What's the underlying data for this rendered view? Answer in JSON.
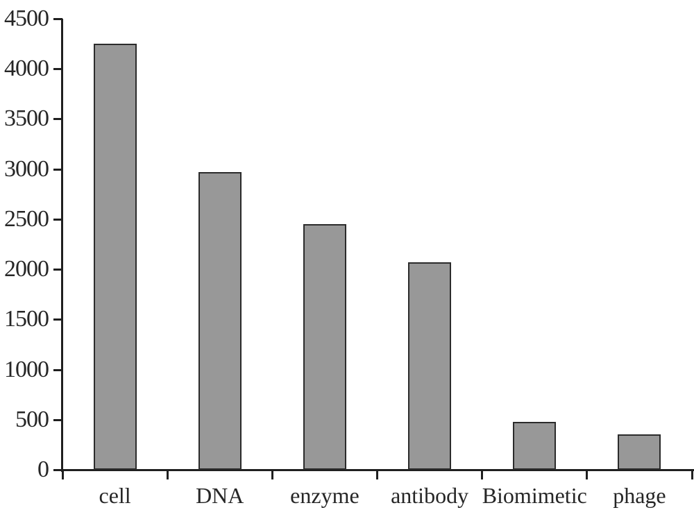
{
  "chart_data": {
    "type": "bar",
    "title": "",
    "xlabel": "",
    "ylabel": "",
    "categories": [
      "cell",
      "DNA",
      "enzyme",
      "antibody",
      "Biomimetic",
      "phage"
    ],
    "values": [
      4250,
      2970,
      2450,
      2070,
      480,
      355
    ],
    "ylim": [
      0,
      4500
    ],
    "ytick_step": 500,
    "ytick_labels": [
      "0",
      "500",
      "1000",
      "1500",
      "2000",
      "2500",
      "3000",
      "3500",
      "4000",
      "4500"
    ],
    "grid": false,
    "legend": null,
    "colors": {
      "bar_fill": "#989898",
      "bar_border": "#2b2b2b",
      "axis": "#1f1f1f",
      "text": "#262626",
      "background": "#ffffff"
    }
  }
}
